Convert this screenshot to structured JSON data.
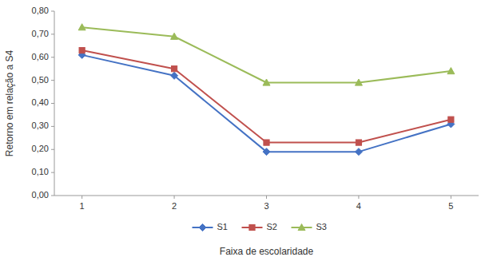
{
  "chart_data": {
    "type": "line",
    "x": [
      1,
      2,
      3,
      4,
      5
    ],
    "xlabel": "Faixa de escolaridade",
    "ylabel": "Retorno em relação a S4",
    "xlim": [
      0.7,
      5.3
    ],
    "xticks": [
      1,
      2,
      3,
      4,
      5
    ],
    "ylim": [
      0.0,
      0.8
    ],
    "yticks": [
      {
        "value": 0.0,
        "label": "0,00"
      },
      {
        "value": 0.1,
        "label": "0,10"
      },
      {
        "value": 0.2,
        "label": "0,20"
      },
      {
        "value": 0.3,
        "label": "0,30"
      },
      {
        "value": 0.4,
        "label": "0,40"
      },
      {
        "value": 0.5,
        "label": "0,50"
      },
      {
        "value": 0.6,
        "label": "0,60"
      },
      {
        "value": 0.7,
        "label": "0,70"
      },
      {
        "value": 0.8,
        "label": "0,80"
      }
    ],
    "grid": false,
    "legend": "bottom",
    "series": [
      {
        "name": "S1",
        "color": "#4472C4",
        "marker": "diamond",
        "values": [
          0.61,
          0.52,
          0.19,
          0.19,
          0.31
        ]
      },
      {
        "name": "S2",
        "color": "#C0504D",
        "marker": "square",
        "values": [
          0.63,
          0.55,
          0.23,
          0.23,
          0.33
        ]
      },
      {
        "name": "S3",
        "color": "#9BBB59",
        "marker": "triangle",
        "values": [
          0.73,
          0.69,
          0.49,
          0.49,
          0.54
        ]
      }
    ]
  }
}
